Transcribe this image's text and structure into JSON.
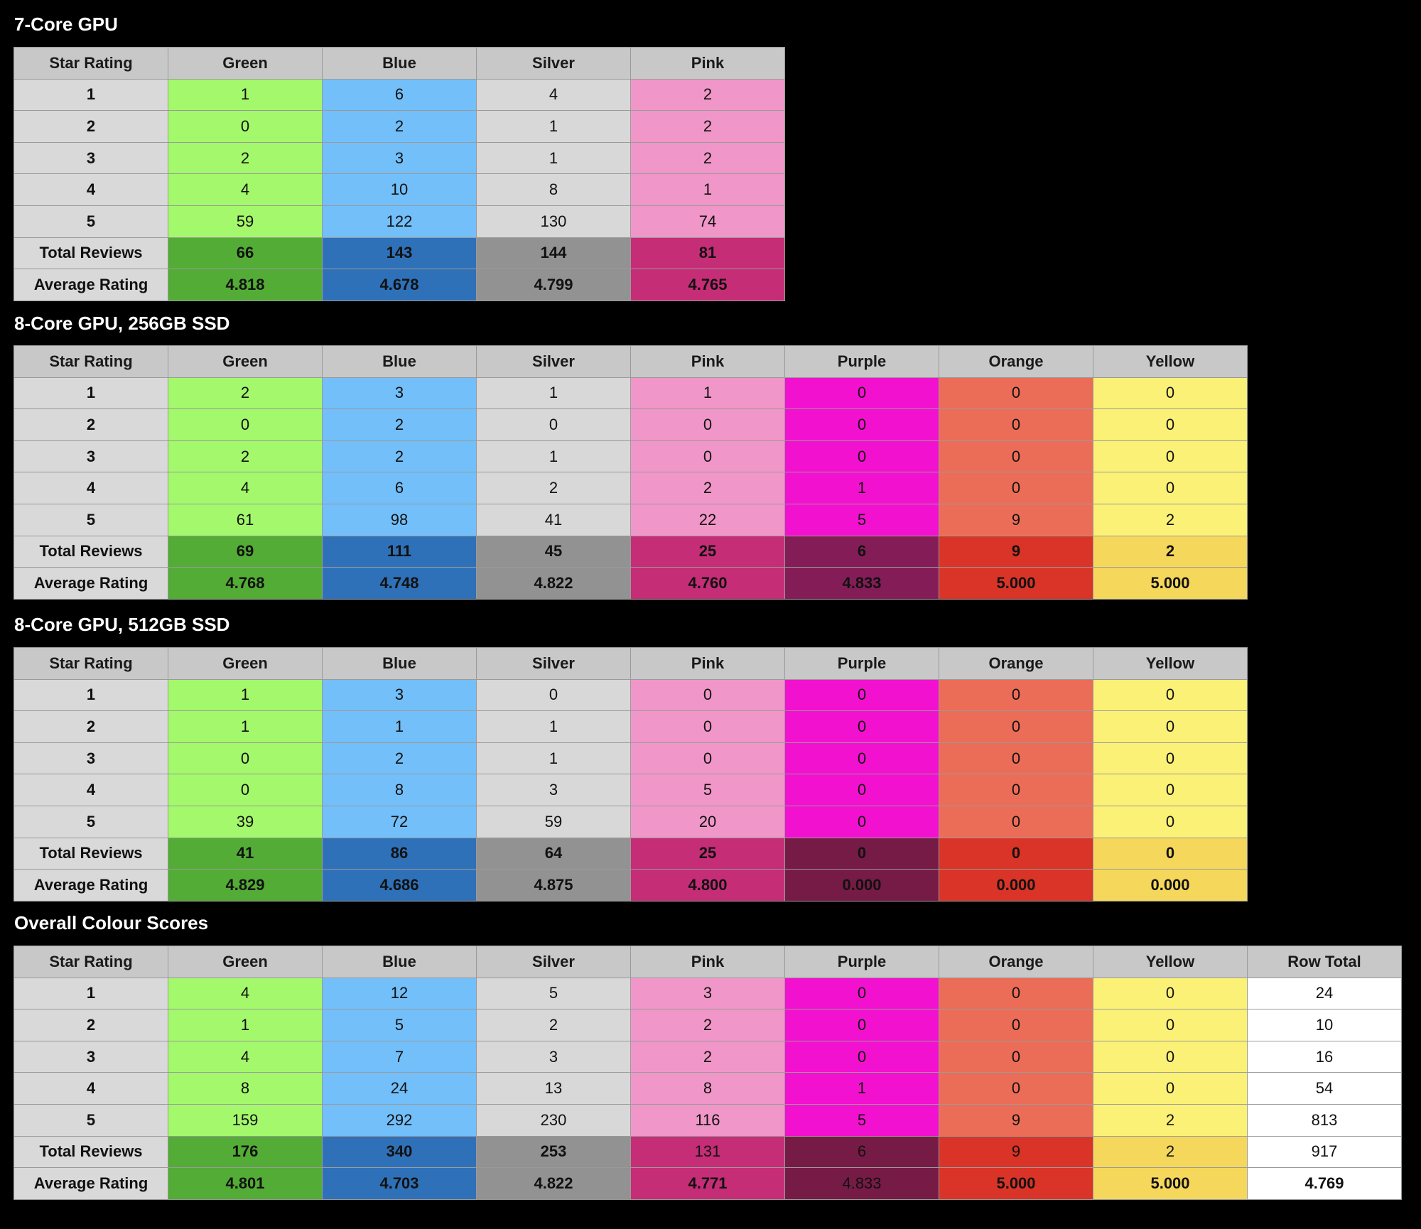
{
  "colors": {
    "header_bg": "#c8c8c8",
    "label_bg": "#d9d9d9",
    "row_total_bg": "#ffffff",
    "light": {
      "Green": "#a3f86b",
      "Blue": "#72bff9",
      "Silver": "#d8d8d8",
      "Pink": "#f096c8",
      "Purple": "#f311d0",
      "Orange": "#ec6d57",
      "Yellow": "#fbf176"
    },
    "dark": {
      "Green": "#53ac35",
      "Blue": "#2f71b8",
      "Silver": "#929292",
      "Pink": "#c52d76",
      "Purple": "#841d57",
      "Orange": "#d93427",
      "Yellow": "#f5d75c"
    },
    "dark_alt": {
      "Purple": "#761b45"
    }
  },
  "tables": [
    {
      "title": "7-Core GPU",
      "headers": [
        "Star Rating",
        "Green",
        "Blue",
        "Silver",
        "Pink"
      ],
      "rows": [
        [
          "1",
          "1",
          "6",
          "4",
          "2"
        ],
        [
          "2",
          "0",
          "2",
          "1",
          "2"
        ],
        [
          "3",
          "2",
          "3",
          "1",
          "2"
        ],
        [
          "4",
          "4",
          "10",
          "8",
          "1"
        ],
        [
          "5",
          "59",
          "122",
          "130",
          "74"
        ]
      ],
      "total": [
        "Total Reviews",
        "66",
        "143",
        "144",
        "81"
      ],
      "average": [
        "Average Rating",
        "4.818",
        "4.678",
        "4.799",
        "4.765"
      ]
    },
    {
      "title": "8-Core GPU, 256GB SSD",
      "headers": [
        "Star Rating",
        "Green",
        "Blue",
        "Silver",
        "Pink",
        "Purple",
        "Orange",
        "Yellow"
      ],
      "rows": [
        [
          "1",
          "2",
          "3",
          "1",
          "1",
          "0",
          "0",
          "0"
        ],
        [
          "2",
          "0",
          "2",
          "0",
          "0",
          "0",
          "0",
          "0"
        ],
        [
          "3",
          "2",
          "2",
          "1",
          "0",
          "0",
          "0",
          "0"
        ],
        [
          "4",
          "4",
          "6",
          "2",
          "2",
          "1",
          "0",
          "0"
        ],
        [
          "5",
          "61",
          "98",
          "41",
          "22",
          "5",
          "9",
          "2"
        ]
      ],
      "total": [
        "Total Reviews",
        "69",
        "111",
        "45",
        "25",
        "6",
        "9",
        "2"
      ],
      "average": [
        "Average Rating",
        "4.768",
        "4.748",
        "4.822",
        "4.760",
        "4.833",
        "5.000",
        "5.000"
      ]
    },
    {
      "title": "8-Core GPU, 512GB SSD",
      "headers": [
        "Star Rating",
        "Green",
        "Blue",
        "Silver",
        "Pink",
        "Purple",
        "Orange",
        "Yellow"
      ],
      "rows": [
        [
          "1",
          "1",
          "3",
          "0",
          "0",
          "0",
          "0",
          "0"
        ],
        [
          "2",
          "1",
          "1",
          "1",
          "0",
          "0",
          "0",
          "0"
        ],
        [
          "3",
          "0",
          "2",
          "1",
          "0",
          "0",
          "0",
          "0"
        ],
        [
          "4",
          "0",
          "8",
          "3",
          "5",
          "0",
          "0",
          "0"
        ],
        [
          "5",
          "39",
          "72",
          "59",
          "20",
          "0",
          "0",
          "0"
        ]
      ],
      "total": [
        "Total Reviews",
        "41",
        "86",
        "64",
        "25",
        "0",
        "0",
        "0"
      ],
      "average": [
        "Average Rating",
        "4.829",
        "4.686",
        "4.875",
        "4.800",
        "0.000",
        "0.000",
        "0.000"
      ]
    },
    {
      "title": "Overall Colour Scores",
      "headers": [
        "Star Rating",
        "Green",
        "Blue",
        "Silver",
        "Pink",
        "Purple",
        "Orange",
        "Yellow",
        "Row Total"
      ],
      "rows": [
        [
          "1",
          "4",
          "12",
          "5",
          "3",
          "0",
          "0",
          "0",
          "24"
        ],
        [
          "2",
          "1",
          "5",
          "2",
          "2",
          "0",
          "0",
          "0",
          "10"
        ],
        [
          "3",
          "4",
          "7",
          "3",
          "2",
          "0",
          "0",
          "0",
          "16"
        ],
        [
          "4",
          "8",
          "24",
          "13",
          "8",
          "1",
          "0",
          "0",
          "54"
        ],
        [
          "5",
          "159",
          "292",
          "230",
          "116",
          "5",
          "9",
          "2",
          "813"
        ]
      ],
      "total": [
        "Total Reviews",
        "176",
        "340",
        "253",
        "131",
        "6",
        "9",
        "2",
        "917"
      ],
      "average": [
        "Average Rating",
        "4.801",
        "4.703",
        "4.822",
        "4.771",
        "4.833",
        "5.000",
        "5.000",
        "4.769"
      ]
    }
  ]
}
